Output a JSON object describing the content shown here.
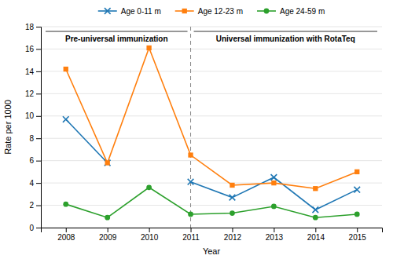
{
  "chart_data": {
    "type": "line",
    "x": [
      2008,
      2009,
      2010,
      2011,
      2012,
      2013,
      2014,
      2015
    ],
    "series": [
      {
        "name": "Age 0-11 m",
        "values": [
          9.7,
          5.8,
          null,
          4.1,
          2.7,
          4.5,
          1.6,
          3.4
        ],
        "marker": "x",
        "line_style": "solid"
      },
      {
        "name": "Age 12-23 m",
        "values": [
          14.2,
          5.8,
          16.1,
          6.5,
          3.8,
          4.0,
          3.5,
          5.0
        ],
        "marker": "square",
        "line_style": "solid"
      },
      {
        "name": "Age 24-59 m",
        "values": [
          2.1,
          0.9,
          3.6,
          1.2,
          1.3,
          1.9,
          0.9,
          1.2
        ],
        "marker": "circle",
        "line_style": "solid"
      }
    ],
    "xlabel": "Year",
    "ylabel": "Rate per 1000",
    "xlim": [
      2007.4,
      2015.6
    ],
    "xticks": [
      2008,
      2009,
      2010,
      2011,
      2012,
      2013,
      2014,
      2015
    ],
    "ylim": [
      0,
      18
    ],
    "yticks": [
      0,
      2,
      4,
      6,
      8,
      10,
      12,
      14,
      16,
      18
    ],
    "divider_x": 2011,
    "annotations": [
      "Pre-universal immunization",
      "Universal immunization with RotaTeq"
    ],
    "grid": true,
    "legend": "top"
  }
}
